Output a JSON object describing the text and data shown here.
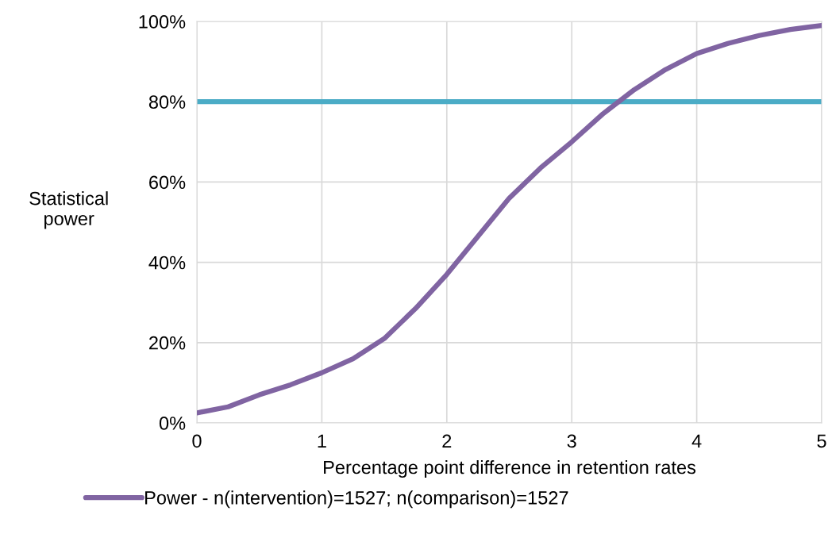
{
  "chart_data": {
    "type": "line",
    "xlabel": "Percentage point difference in retention rates",
    "ylabel": "Statistical\npower",
    "x": [
      0,
      0.25,
      0.5,
      0.75,
      1,
      1.25,
      1.5,
      1.75,
      2,
      2.25,
      2.5,
      2.75,
      3,
      3.25,
      3.5,
      3.75,
      4,
      4.25,
      4.5,
      4.75,
      5
    ],
    "series": [
      {
        "name": "Power - n(intervention)=1527; n(comparison)=1527",
        "color": "#8064a2",
        "values": [
          2.5,
          4,
          7,
          9.5,
          12.5,
          16,
          21,
          28.5,
          37,
          46.5,
          56,
          63.5,
          70,
          77,
          83,
          88,
          92,
          94.5,
          96.5,
          98,
          99
        ]
      }
    ],
    "ref_lines": [
      {
        "axis": "y",
        "value": 80,
        "label": null,
        "color": "#4bacc6"
      }
    ],
    "xlim": [
      0,
      5
    ],
    "xticks": [
      0,
      1,
      2,
      3,
      4,
      5
    ],
    "ylim": [
      0,
      100
    ],
    "yticks": [
      {
        "value": 0,
        "label": "0%"
      },
      {
        "value": 20,
        "label": "20%"
      },
      {
        "value": 40,
        "label": "40%"
      },
      {
        "value": 60,
        "label": "60%"
      },
      {
        "value": 80,
        "label": "80%"
      },
      {
        "value": 100,
        "label": "100%"
      }
    ],
    "grid": true,
    "legend": "bottom",
    "marker": "none",
    "line_style": "solid"
  }
}
